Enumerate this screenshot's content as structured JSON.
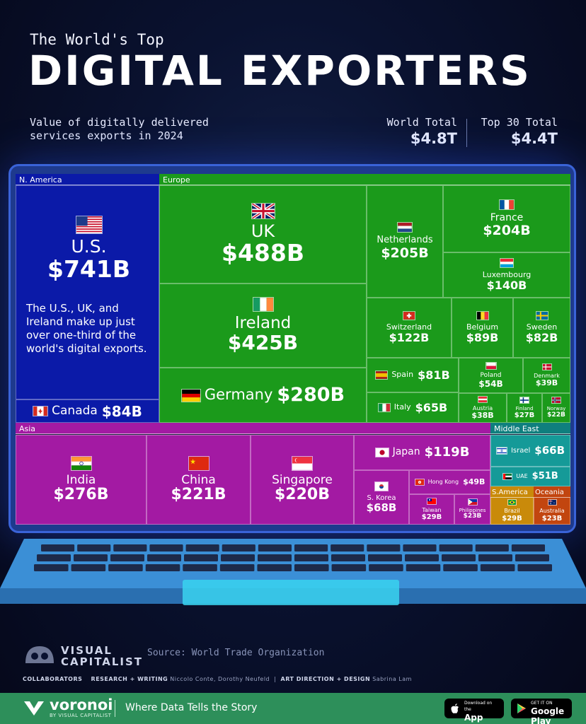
{
  "header": {
    "subtitle_top": "The World's Top",
    "title": "DIGITAL EXPORTERS",
    "description": "Value of digitally delivered services exports in 2024",
    "world_total_label": "World Total",
    "world_total_value": "$4.8T",
    "top30_total_label": "Top 30 Total",
    "top30_total_value": "$4.4T"
  },
  "colors": {
    "na": "#0b1aa8",
    "europe": "#1b9a1b",
    "asia": "#a31aa3",
    "middle_east": "#159a98",
    "s_america": "#c98a0a",
    "oceania": "#c2450f"
  },
  "annotation": "The U.S., UK, and Ireland make up just over one-third of the world's digital exports.",
  "chart_data": {
    "type": "treemap",
    "unit": "USD billions",
    "regions": [
      {
        "name": "N. America",
        "items": [
          {
            "label": "U.S.",
            "value_label": "$741B",
            "value": 741
          },
          {
            "label": "Canada",
            "value_label": "$84B",
            "value": 84
          }
        ]
      },
      {
        "name": "Europe",
        "items": [
          {
            "label": "UK",
            "value_label": "$488B",
            "value": 488
          },
          {
            "label": "Ireland",
            "value_label": "$425B",
            "value": 425
          },
          {
            "label": "Germany",
            "value_label": "$280B",
            "value": 280
          },
          {
            "label": "Netherlands",
            "value_label": "$205B",
            "value": 205
          },
          {
            "label": "France",
            "value_label": "$204B",
            "value": 204
          },
          {
            "label": "Luxembourg",
            "value_label": "$140B",
            "value": 140
          },
          {
            "label": "Switzerland",
            "value_label": "$122B",
            "value": 122
          },
          {
            "label": "Belgium",
            "value_label": "$89B",
            "value": 89
          },
          {
            "label": "Sweden",
            "value_label": "$82B",
            "value": 82
          },
          {
            "label": "Spain",
            "value_label": "$81B",
            "value": 81
          },
          {
            "label": "Italy",
            "value_label": "$65B",
            "value": 65
          },
          {
            "label": "Poland",
            "value_label": "$54B",
            "value": 54
          },
          {
            "label": "Denmark",
            "value_label": "$39B",
            "value": 39
          },
          {
            "label": "Austria",
            "value_label": "$38B",
            "value": 38
          },
          {
            "label": "Finland",
            "value_label": "$27B",
            "value": 27
          },
          {
            "label": "Norway",
            "value_label": "$22B",
            "value": 22
          }
        ]
      },
      {
        "name": "Asia",
        "items": [
          {
            "label": "India",
            "value_label": "$276B",
            "value": 276
          },
          {
            "label": "China",
            "value_label": "$221B",
            "value": 221
          },
          {
            "label": "Singapore",
            "value_label": "$220B",
            "value": 220
          },
          {
            "label": "Japan",
            "value_label": "$119B",
            "value": 119
          },
          {
            "label": "S. Korea",
            "value_label": "$68B",
            "value": 68
          },
          {
            "label": "Hong Kong",
            "value_label": "$49B",
            "value": 49
          },
          {
            "label": "Taiwan",
            "value_label": "$29B",
            "value": 29
          },
          {
            "label": "Philippines",
            "value_label": "$23B",
            "value": 23
          }
        ]
      },
      {
        "name": "Middle East",
        "items": [
          {
            "label": "Israel",
            "value_label": "$66B",
            "value": 66
          },
          {
            "label": "UAE",
            "value_label": "$51B",
            "value": 51
          }
        ]
      },
      {
        "name": "S.America",
        "items": [
          {
            "label": "Brazil",
            "value_label": "$29B",
            "value": 29
          }
        ]
      },
      {
        "name": "Oceania",
        "items": [
          {
            "label": "Australia",
            "value_label": "$23B",
            "value": 23
          }
        ]
      }
    ]
  },
  "footer": {
    "source": "Source: World Trade Organization",
    "vc_logo_line1": "VISUAL",
    "vc_logo_line2": "CAPITALIST",
    "collaborators_label": "COLLABORATORS",
    "research_label": "RESEARCH + WRITING",
    "research_names": "Niccolo Conte, Dorothy Neufeld",
    "art_label": "ART DIRECTION + DESIGN",
    "art_names": "Sabrina Lam",
    "brand": "voronoi",
    "brand_by": "BY VISUAL CAPITALIST",
    "tagline": "Where Data Tells the Story",
    "appstore_small": "Download on the",
    "appstore_big": "App Store",
    "googleplay_small": "GET IT ON",
    "googleplay_big": "Google Play"
  }
}
